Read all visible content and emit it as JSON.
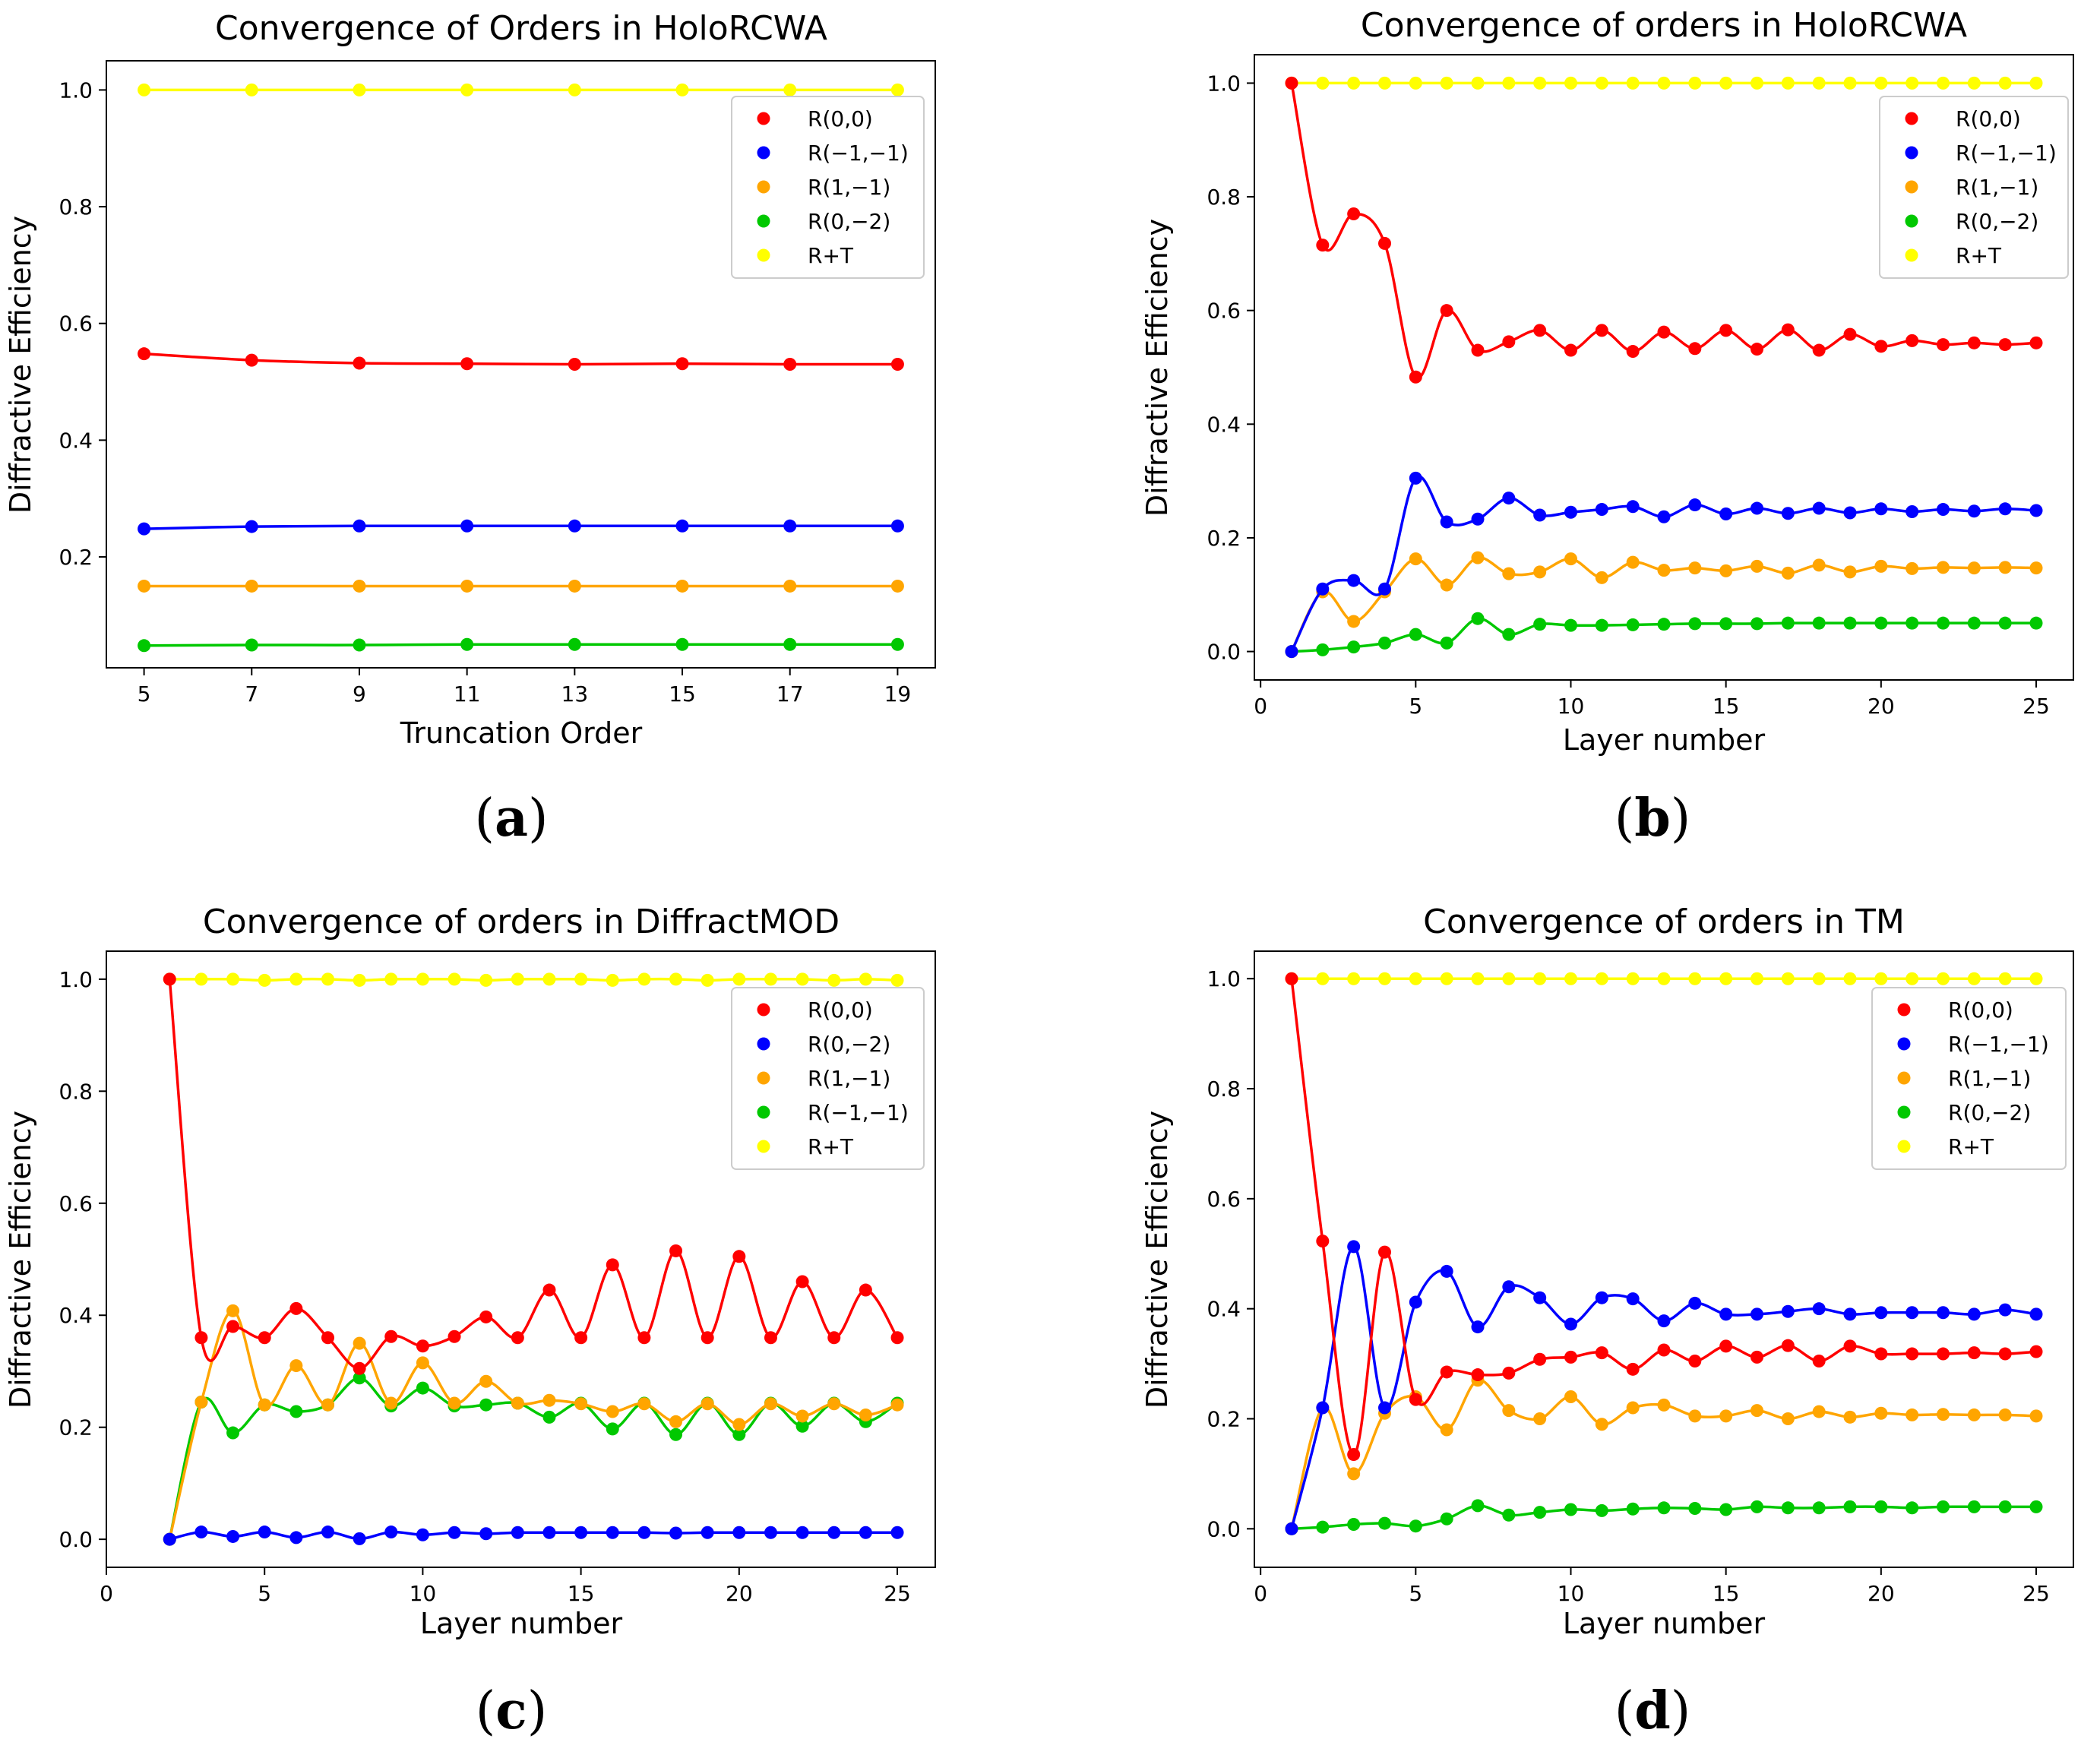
{
  "panels": [
    {
      "id": "a",
      "label": "a",
      "chart_data": {
        "type": "line",
        "title": "Convergence of Orders in HoloRCWA",
        "xlabel": "Truncation Order",
        "ylabel": "Diffractive Efficiency",
        "xlim": [
          4.3,
          19.7
        ],
        "ylim": [
          0.01,
          1.05
        ],
        "xticks": [
          5,
          7,
          9,
          11,
          13,
          15,
          17,
          19
        ],
        "xtick_labels": [
          "5",
          "7",
          "9",
          "11",
          "13",
          "15",
          "17",
          "19"
        ],
        "yticks": [
          0.2,
          0.4,
          0.6,
          0.8,
          1.0
        ],
        "ytick_labels": [
          "0.2",
          "0.4",
          "0.6",
          "0.8",
          "1.0"
        ],
        "x": [
          5,
          7,
          9,
          11,
          13,
          15,
          17,
          19
        ],
        "series": [
          {
            "name": "R(0,0)",
            "color": "#ff0000",
            "values": [
              0.548,
              0.537,
              0.532,
              0.531,
              0.53,
              0.531,
              0.53,
              0.53
            ]
          },
          {
            "name": "R(−1,−1)",
            "color": "#0000ff",
            "values": [
              0.248,
              0.252,
              0.253,
              0.253,
              0.253,
              0.253,
              0.253,
              0.253
            ]
          },
          {
            "name": "R(1,−1)",
            "color": "#ffa500",
            "values": [
              0.15,
              0.15,
              0.15,
              0.15,
              0.15,
              0.15,
              0.15,
              0.15
            ]
          },
          {
            "name": "R(0,−2)",
            "color": "#00c800",
            "values": [
              0.048,
              0.049,
              0.049,
              0.05,
              0.05,
              0.05,
              0.05,
              0.05
            ]
          },
          {
            "name": "R+T",
            "color": "#ffff00",
            "values": [
              1.0,
              1.0,
              1.0,
              1.0,
              1.0,
              1.0,
              1.0,
              1.0
            ]
          }
        ],
        "legend": "top-right"
      }
    },
    {
      "id": "b",
      "label": "b",
      "chart_data": {
        "type": "line",
        "title": "Convergence of orders in HoloRCWA",
        "xlabel": "Layer number",
        "ylabel": "Diffractive Efficiency",
        "xlim": [
          -0.2,
          26.2
        ],
        "ylim": [
          -0.05,
          1.05
        ],
        "xticks": [
          0,
          5,
          10,
          15,
          20,
          25
        ],
        "xtick_labels": [
          "0",
          "5",
          "10",
          "15",
          "20",
          "25"
        ],
        "yticks": [
          0.0,
          0.2,
          0.4,
          0.6,
          0.8,
          1.0
        ],
        "ytick_labels": [
          "0.0",
          "0.2",
          "0.4",
          "0.6",
          "0.8",
          "1.0"
        ],
        "x": [
          1,
          2,
          3,
          4,
          5,
          6,
          7,
          8,
          9,
          10,
          11,
          12,
          13,
          14,
          15,
          16,
          17,
          18,
          19,
          20,
          21,
          22,
          23,
          24,
          25
        ],
        "series": [
          {
            "name": "R(0,0)",
            "color": "#ff0000",
            "values": [
              1.0,
              0.715,
              0.77,
              0.718,
              0.483,
              0.6,
              0.53,
              0.545,
              0.565,
              0.53,
              0.565,
              0.528,
              0.562,
              0.533,
              0.565,
              0.532,
              0.566,
              0.53,
              0.558,
              0.537,
              0.547,
              0.54,
              0.543,
              0.54,
              0.543
            ]
          },
          {
            "name": "R(−1,−1)",
            "color": "#0000ff",
            "values": [
              0.0,
              0.11,
              0.125,
              0.11,
              0.305,
              0.228,
              0.233,
              0.27,
              0.24,
              0.245,
              0.25,
              0.255,
              0.237,
              0.258,
              0.242,
              0.252,
              0.243,
              0.252,
              0.244,
              0.251,
              0.246,
              0.25,
              0.247,
              0.251,
              0.248
            ]
          },
          {
            "name": "R(1,−1)",
            "color": "#ffa500",
            "values": [
              0.0,
              0.105,
              0.053,
              0.105,
              0.163,
              0.117,
              0.165,
              0.137,
              0.14,
              0.163,
              0.13,
              0.157,
              0.143,
              0.147,
              0.142,
              0.15,
              0.138,
              0.152,
              0.14,
              0.15,
              0.146,
              0.148,
              0.147,
              0.148,
              0.147
            ]
          },
          {
            "name": "R(0,−2)",
            "color": "#00c800",
            "values": [
              0.0,
              0.003,
              0.008,
              0.015,
              0.03,
              0.015,
              0.058,
              0.03,
              0.048,
              0.046,
              0.046,
              0.047,
              0.048,
              0.049,
              0.049,
              0.049,
              0.05,
              0.05,
              0.05,
              0.05,
              0.05,
              0.05,
              0.05,
              0.05,
              0.05
            ]
          },
          {
            "name": "R+T",
            "color": "#ffff00",
            "values": [
              1.0,
              1.0,
              1.0,
              1.0,
              1.0,
              1.0,
              1.0,
              1.0,
              1.0,
              1.0,
              1.0,
              1.0,
              1.0,
              1.0,
              1.0,
              1.0,
              1.0,
              1.0,
              1.0,
              1.0,
              1.0,
              1.0,
              1.0,
              1.0,
              1.0
            ]
          }
        ],
        "legend": "top-right"
      }
    },
    {
      "id": "c",
      "label": "c",
      "chart_data": {
        "type": "line",
        "title": "Convergence of orders in DiffractMOD",
        "xlabel": "Layer number",
        "ylabel": "Diffractive Efficiency",
        "xlim": [
          0.0,
          26.2
        ],
        "ylim": [
          -0.05,
          1.05
        ],
        "xticks": [
          0,
          5,
          10,
          15,
          20,
          25
        ],
        "xtick_labels": [
          "0",
          "5",
          "10",
          "15",
          "20",
          "25"
        ],
        "yticks": [
          0.0,
          0.2,
          0.4,
          0.6,
          0.8,
          1.0
        ],
        "ytick_labels": [
          "0.0",
          "0.2",
          "0.4",
          "0.6",
          "0.8",
          "1.0"
        ],
        "x": [
          2,
          3,
          4,
          5,
          6,
          7,
          8,
          9,
          10,
          11,
          12,
          13,
          14,
          15,
          16,
          17,
          18,
          19,
          20,
          21,
          22,
          23,
          24,
          25
        ],
        "series": [
          {
            "name": "R(0,0)",
            "color": "#ff0000",
            "values": [
              1.0,
              0.36,
              0.38,
              0.36,
              0.412,
              0.36,
              0.305,
              0.362,
              0.345,
              0.362,
              0.397,
              0.36,
              0.445,
              0.36,
              0.49,
              0.36,
              0.515,
              0.36,
              0.505,
              0.36,
              0.46,
              0.36,
              0.445,
              0.36
            ]
          },
          {
            "name": "R(0,−2)",
            "color": "#0000ff",
            "values": [
              0.0,
              0.013,
              0.005,
              0.013,
              0.003,
              0.013,
              0.001,
              0.013,
              0.008,
              0.012,
              0.01,
              0.012,
              0.012,
              0.012,
              0.012,
              0.012,
              0.011,
              0.012,
              0.012,
              0.012,
              0.012,
              0.012,
              0.012,
              0.012
            ]
          },
          {
            "name": "R(1,−1)",
            "color": "#ffa500",
            "values": [
              0.0,
              0.245,
              0.408,
              0.24,
              0.31,
              0.24,
              0.35,
              0.243,
              0.315,
              0.243,
              0.282,
              0.243,
              0.248,
              0.242,
              0.228,
              0.242,
              0.21,
              0.242,
              0.205,
              0.242,
              0.22,
              0.242,
              0.222,
              0.24
            ]
          },
          {
            "name": "R(−1,−1)",
            "color": "#00c800",
            "values": [
              0.0,
              0.245,
              0.19,
              0.24,
              0.228,
              0.24,
              0.288,
              0.238,
              0.27,
              0.238,
              0.24,
              0.243,
              0.218,
              0.243,
              0.197,
              0.243,
              0.187,
              0.243,
              0.187,
              0.243,
              0.202,
              0.243,
              0.21,
              0.243
            ]
          },
          {
            "name": "R+T",
            "color": "#ffff00",
            "values": [
              1.0,
              1.0,
              1.0,
              0.998,
              1.0,
              1.0,
              0.998,
              1.0,
              1.0,
              1.0,
              0.998,
              1.0,
              1.0,
              1.0,
              0.998,
              1.0,
              1.0,
              0.998,
              1.0,
              1.0,
              1.0,
              0.998,
              1.0,
              0.998
            ]
          }
        ],
        "legend": "top-right"
      }
    },
    {
      "id": "d",
      "label": "d",
      "chart_data": {
        "type": "line",
        "title": "Convergence of orders in TM",
        "xlabel": "Layer number",
        "ylabel": "Diffractive Efficiency",
        "xlim": [
          -0.2,
          26.2
        ],
        "ylim": [
          -0.07,
          1.05
        ],
        "xticks": [
          0,
          5,
          10,
          15,
          20,
          25
        ],
        "xtick_labels": [
          "0",
          "5",
          "10",
          "15",
          "20",
          "25"
        ],
        "yticks": [
          0.0,
          0.2,
          0.4,
          0.6,
          0.8,
          1.0
        ],
        "ytick_labels": [
          "0.0",
          "0.2",
          "0.4",
          "0.6",
          "0.8",
          "1.0"
        ],
        "x": [
          1,
          2,
          3,
          4,
          5,
          6,
          7,
          8,
          9,
          10,
          11,
          12,
          13,
          14,
          15,
          16,
          17,
          18,
          19,
          20,
          21,
          22,
          23,
          24,
          25
        ],
        "series": [
          {
            "name": "R(0,0)",
            "color": "#ff0000",
            "values": [
              1.0,
              0.523,
              0.135,
              0.503,
              0.235,
              0.285,
              0.28,
              0.283,
              0.308,
              0.312,
              0.32,
              0.29,
              0.325,
              0.305,
              0.332,
              0.312,
              0.333,
              0.305,
              0.332,
              0.318,
              0.318,
              0.318,
              0.32,
              0.318,
              0.322
            ]
          },
          {
            "name": "R(−1,−1)",
            "color": "#0000ff",
            "values": [
              0.0,
              0.22,
              0.513,
              0.22,
              0.412,
              0.468,
              0.367,
              0.44,
              0.42,
              0.372,
              0.42,
              0.418,
              0.378,
              0.41,
              0.39,
              0.39,
              0.395,
              0.4,
              0.39,
              0.393,
              0.393,
              0.393,
              0.39,
              0.398,
              0.39
            ]
          },
          {
            "name": "R(1,−1)",
            "color": "#ffa500",
            "values": [
              0.0,
              0.22,
              0.1,
              0.21,
              0.24,
              0.18,
              0.27,
              0.215,
              0.2,
              0.24,
              0.19,
              0.22,
              0.225,
              0.205,
              0.205,
              0.215,
              0.2,
              0.213,
              0.203,
              0.21,
              0.207,
              0.208,
              0.207,
              0.207,
              0.205
            ]
          },
          {
            "name": "R(0,−2)",
            "color": "#00c800",
            "values": [
              0.0,
              0.003,
              0.008,
              0.01,
              0.005,
              0.018,
              0.042,
              0.025,
              0.03,
              0.035,
              0.033,
              0.036,
              0.038,
              0.037,
              0.035,
              0.04,
              0.038,
              0.038,
              0.04,
              0.04,
              0.038,
              0.04,
              0.04,
              0.04,
              0.04
            ]
          },
          {
            "name": "R+T",
            "color": "#ffff00",
            "values": [
              1.0,
              1.0,
              1.0,
              1.0,
              1.0,
              1.0,
              1.0,
              1.0,
              1.0,
              1.0,
              1.0,
              1.0,
              1.0,
              1.0,
              1.0,
              1.0,
              1.0,
              1.0,
              1.0,
              1.0,
              1.0,
              1.0,
              1.0,
              1.0,
              1.0
            ]
          }
        ],
        "legend": "top-right"
      }
    }
  ]
}
